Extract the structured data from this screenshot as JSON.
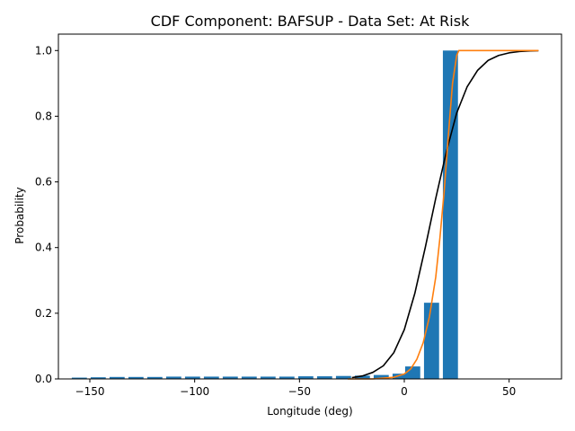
{
  "chart_data": {
    "type": "bar",
    "title": "CDF Component: BAFSUP - Data Set: At Risk",
    "xlabel": "Longitude (deg)",
    "ylabel": "Probability",
    "xlim": [
      -165,
      75
    ],
    "ylim": [
      0,
      1.05
    ],
    "xticks": [
      -150,
      -100,
      -50,
      0,
      50
    ],
    "yticks": [
      0.0,
      0.2,
      0.4,
      0.6,
      0.8,
      1.0
    ],
    "xtick_labels": [
      "−150",
      "−100",
      "−50",
      "0",
      "50"
    ],
    "ytick_labels": [
      "0.0",
      "0.2",
      "0.4",
      "0.6",
      "0.8",
      "1.0"
    ],
    "grid": false,
    "bar_color": "#1f77b4",
    "bar_width": 7.2,
    "bars": {
      "x": [
        -155,
        -146,
        -137,
        -128,
        -119,
        -110,
        -101,
        -92,
        -83,
        -74,
        -65,
        -56,
        -47,
        -38,
        -29,
        -20,
        -11,
        -2,
        4,
        13,
        22
      ],
      "values": [
        0.004,
        0.005,
        0.006,
        0.006,
        0.006,
        0.007,
        0.007,
        0.007,
        0.007,
        0.007,
        0.007,
        0.007,
        0.008,
        0.008,
        0.009,
        0.01,
        0.012,
        0.016,
        0.038,
        0.232,
        1.0
      ]
    },
    "series": [
      {
        "color": "#000000",
        "x": [
          -25,
          -20,
          -15,
          -10,
          -5,
          0,
          5,
          10,
          15,
          20,
          25,
          30,
          35,
          40,
          45,
          50,
          55,
          60,
          64
        ],
        "values": [
          0.004,
          0.009,
          0.02,
          0.04,
          0.08,
          0.15,
          0.26,
          0.4,
          0.55,
          0.69,
          0.81,
          0.89,
          0.94,
          0.97,
          0.985,
          0.993,
          0.997,
          0.999,
          0.9995
        ]
      },
      {
        "color": "#ff7f0e",
        "x": [
          -27,
          -15,
          -5,
          0,
          3,
          6,
          9,
          12,
          15,
          17,
          19,
          21,
          23,
          25,
          26,
          30,
          40,
          64
        ],
        "values": [
          0.0,
          0.0,
          0.005,
          0.015,
          0.03,
          0.06,
          0.11,
          0.19,
          0.31,
          0.43,
          0.57,
          0.74,
          0.9,
          0.985,
          1.0,
          1.0,
          1.0,
          1.0
        ]
      }
    ]
  }
}
